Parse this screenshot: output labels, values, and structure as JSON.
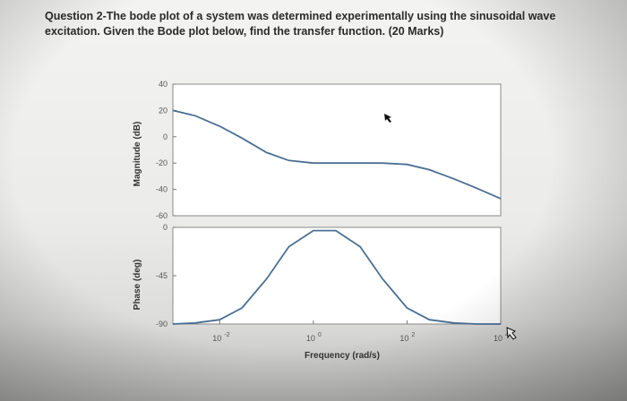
{
  "question": {
    "text": "Question 2-The bode plot of a system was determined experimentally using the sinusoidal wave excitation. Given the Bode plot below, find the transfer function. (20 Marks)"
  },
  "chart_data": [
    {
      "type": "line",
      "ylabel": "Magnitude (dB)",
      "xscale": "log",
      "xlim": [
        0.001,
        10000
      ],
      "ylim": [
        -60,
        40
      ],
      "yticks": [
        "40",
        "20",
        "0",
        "-20",
        "-40",
        "-60"
      ],
      "series": [
        {
          "x": [
            0.001,
            0.003,
            0.01,
            0.03,
            0.1,
            0.3,
            1,
            3,
            10,
            30,
            100,
            300,
            1000,
            3000,
            10000
          ],
          "y": [
            20,
            16,
            8,
            -1,
            -12,
            -18,
            -20,
            -20,
            -20,
            -20,
            -21,
            -25,
            -32,
            -39,
            -47
          ]
        }
      ]
    },
    {
      "type": "line",
      "xlabel": "Frequency (rad/s)",
      "ylabel": "Phase (deg)",
      "xscale": "log",
      "xlim": [
        0.001,
        10000
      ],
      "ylim": [
        -90,
        0
      ],
      "yticks": [
        "0",
        "-45",
        "-90"
      ],
      "xticks": [
        "10",
        "10",
        "10",
        "10"
      ],
      "xtick_exponents": [
        "-2",
        "0",
        "2",
        "4"
      ],
      "series": [
        {
          "x": [
            0.001,
            0.003,
            0.01,
            0.03,
            0.1,
            0.3,
            1,
            3,
            10,
            30,
            100,
            300,
            1000,
            3000,
            10000
          ],
          "y": [
            -90,
            -89,
            -86,
            -75,
            -48,
            -18,
            -3,
            -3,
            -18,
            -48,
            -75,
            -86,
            -89,
            -90,
            -90
          ]
        }
      ]
    }
  ]
}
